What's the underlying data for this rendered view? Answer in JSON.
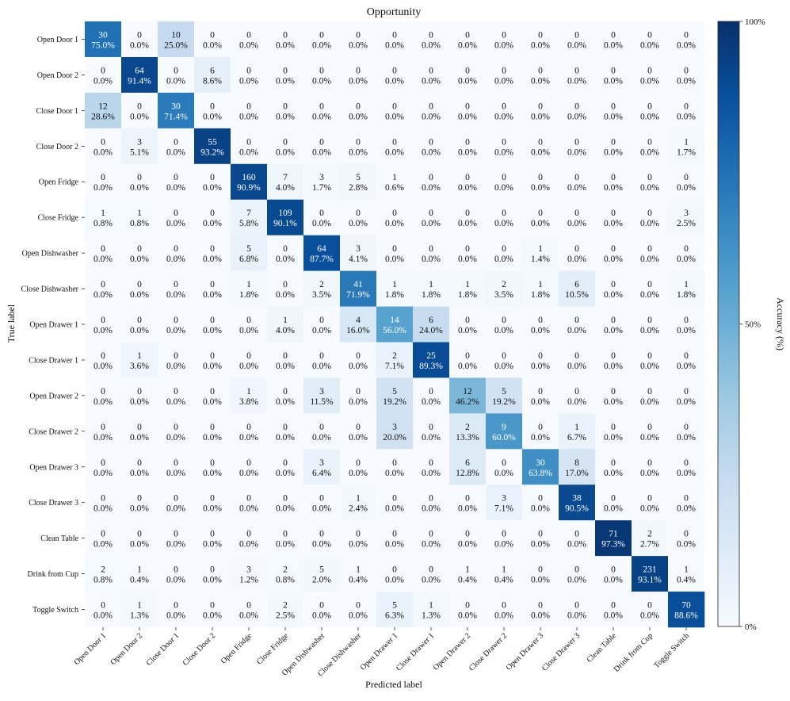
{
  "chart_data": {
    "type": "heatmap",
    "title": "Opportunity",
    "xlabel": "Predicted label",
    "ylabel": "True label",
    "colorbar": {
      "label": "Accuracy (%)",
      "ticks": [
        "0%",
        "50%",
        "100%"
      ],
      "range": [
        0,
        100
      ],
      "colormap": "Blues",
      "colors": [
        "#f7fbff",
        "#deebf7",
        "#c6dbef",
        "#9ecae1",
        "#6baed6",
        "#4292c6",
        "#2171b5",
        "#08519c",
        "#08306b"
      ]
    },
    "labels": [
      "Open Door 1",
      "Open Door 2",
      "Close Door 1",
      "Close Door 2",
      "Open Fridge",
      "Close Fridge",
      "Open Dishwasher",
      "Close Dishwasher",
      "Open Drawer 1",
      "Close Drawer 1",
      "Open Drawer 2",
      "Close Drawer 2",
      "Open Drawer 3",
      "Close Drawer 3",
      "Clean Table",
      "Drink from Cup",
      "Toggle Switch"
    ],
    "counts": [
      [
        30,
        0,
        10,
        0,
        0,
        0,
        0,
        0,
        0,
        0,
        0,
        0,
        0,
        0,
        0,
        0,
        0
      ],
      [
        0,
        64,
        0,
        6,
        0,
        0,
        0,
        0,
        0,
        0,
        0,
        0,
        0,
        0,
        0,
        0,
        0
      ],
      [
        12,
        0,
        30,
        0,
        0,
        0,
        0,
        0,
        0,
        0,
        0,
        0,
        0,
        0,
        0,
        0,
        0
      ],
      [
        0,
        3,
        0,
        55,
        0,
        0,
        0,
        0,
        0,
        0,
        0,
        0,
        0,
        0,
        0,
        0,
        1
      ],
      [
        0,
        0,
        0,
        0,
        160,
        7,
        3,
        5,
        1,
        0,
        0,
        0,
        0,
        0,
        0,
        0,
        0
      ],
      [
        1,
        1,
        0,
        0,
        7,
        109,
        0,
        0,
        0,
        0,
        0,
        0,
        0,
        0,
        0,
        0,
        3
      ],
      [
        0,
        0,
        0,
        0,
        5,
        0,
        64,
        3,
        0,
        0,
        0,
        0,
        1,
        0,
        0,
        0,
        0
      ],
      [
        0,
        0,
        0,
        0,
        1,
        0,
        2,
        41,
        1,
        1,
        1,
        2,
        1,
        6,
        0,
        0,
        1
      ],
      [
        0,
        0,
        0,
        0,
        0,
        1,
        0,
        4,
        14,
        6,
        0,
        0,
        0,
        0,
        0,
        0,
        0
      ],
      [
        0,
        1,
        0,
        0,
        0,
        0,
        0,
        0,
        2,
        25,
        0,
        0,
        0,
        0,
        0,
        0,
        0
      ],
      [
        0,
        0,
        0,
        0,
        1,
        0,
        3,
        0,
        5,
        0,
        12,
        5,
        0,
        0,
        0,
        0,
        0
      ],
      [
        0,
        0,
        0,
        0,
        0,
        0,
        0,
        0,
        3,
        0,
        2,
        9,
        0,
        1,
        0,
        0,
        0
      ],
      [
        0,
        0,
        0,
        0,
        0,
        0,
        3,
        0,
        0,
        0,
        6,
        0,
        30,
        8,
        0,
        0,
        0
      ],
      [
        0,
        0,
        0,
        0,
        0,
        0,
        0,
        1,
        0,
        0,
        0,
        3,
        0,
        38,
        0,
        0,
        0
      ],
      [
        0,
        0,
        0,
        0,
        0,
        0,
        0,
        0,
        0,
        0,
        0,
        0,
        0,
        0,
        71,
        2,
        0
      ],
      [
        2,
        1,
        0,
        0,
        3,
        2,
        5,
        1,
        0,
        0,
        1,
        1,
        0,
        0,
        0,
        231,
        1
      ],
      [
        0,
        1,
        0,
        0,
        0,
        2,
        0,
        0,
        5,
        1,
        0,
        0,
        0,
        0,
        0,
        0,
        70
      ]
    ],
    "percentages": [
      [
        75.0,
        0.0,
        25.0,
        0.0,
        0.0,
        0.0,
        0.0,
        0.0,
        0.0,
        0.0,
        0.0,
        0.0,
        0.0,
        0.0,
        0.0,
        0.0,
        0.0
      ],
      [
        0.0,
        91.4,
        0.0,
        8.6,
        0.0,
        0.0,
        0.0,
        0.0,
        0.0,
        0.0,
        0.0,
        0.0,
        0.0,
        0.0,
        0.0,
        0.0,
        0.0
      ],
      [
        28.6,
        0.0,
        71.4,
        0.0,
        0.0,
        0.0,
        0.0,
        0.0,
        0.0,
        0.0,
        0.0,
        0.0,
        0.0,
        0.0,
        0.0,
        0.0,
        0.0
      ],
      [
        0.0,
        5.1,
        0.0,
        93.2,
        0.0,
        0.0,
        0.0,
        0.0,
        0.0,
        0.0,
        0.0,
        0.0,
        0.0,
        0.0,
        0.0,
        0.0,
        1.7
      ],
      [
        0.0,
        0.0,
        0.0,
        0.0,
        90.9,
        4.0,
        1.7,
        2.8,
        0.6,
        0.0,
        0.0,
        0.0,
        0.0,
        0.0,
        0.0,
        0.0,
        0.0
      ],
      [
        0.8,
        0.8,
        0.0,
        0.0,
        5.8,
        90.1,
        0.0,
        0.0,
        0.0,
        0.0,
        0.0,
        0.0,
        0.0,
        0.0,
        0.0,
        0.0,
        2.5
      ],
      [
        0.0,
        0.0,
        0.0,
        0.0,
        6.8,
        0.0,
        87.7,
        4.1,
        0.0,
        0.0,
        0.0,
        0.0,
        1.4,
        0.0,
        0.0,
        0.0,
        0.0
      ],
      [
        0.0,
        0.0,
        0.0,
        0.0,
        1.8,
        0.0,
        3.5,
        71.9,
        1.8,
        1.8,
        1.8,
        3.5,
        1.8,
        10.5,
        0.0,
        0.0,
        1.8
      ],
      [
        0.0,
        0.0,
        0.0,
        0.0,
        0.0,
        4.0,
        0.0,
        16.0,
        56.0,
        24.0,
        0.0,
        0.0,
        0.0,
        0.0,
        0.0,
        0.0,
        0.0
      ],
      [
        0.0,
        3.6,
        0.0,
        0.0,
        0.0,
        0.0,
        0.0,
        0.0,
        7.1,
        89.3,
        0.0,
        0.0,
        0.0,
        0.0,
        0.0,
        0.0,
        0.0
      ],
      [
        0.0,
        0.0,
        0.0,
        0.0,
        3.8,
        0.0,
        11.5,
        0.0,
        19.2,
        0.0,
        46.2,
        19.2,
        0.0,
        0.0,
        0.0,
        0.0,
        0.0
      ],
      [
        0.0,
        0.0,
        0.0,
        0.0,
        0.0,
        0.0,
        0.0,
        0.0,
        20.0,
        0.0,
        13.3,
        60.0,
        0.0,
        6.7,
        0.0,
        0.0,
        0.0
      ],
      [
        0.0,
        0.0,
        0.0,
        0.0,
        0.0,
        0.0,
        6.4,
        0.0,
        0.0,
        0.0,
        12.8,
        0.0,
        63.8,
        17.0,
        0.0,
        0.0,
        0.0
      ],
      [
        0.0,
        0.0,
        0.0,
        0.0,
        0.0,
        0.0,
        0.0,
        2.4,
        0.0,
        0.0,
        0.0,
        7.1,
        0.0,
        90.5,
        0.0,
        0.0,
        0.0
      ],
      [
        0.0,
        0.0,
        0.0,
        0.0,
        0.0,
        0.0,
        0.0,
        0.0,
        0.0,
        0.0,
        0.0,
        0.0,
        0.0,
        0.0,
        97.3,
        2.7,
        0.0
      ],
      [
        0.8,
        0.4,
        0.0,
        0.0,
        1.2,
        0.8,
        2.0,
        0.4,
        0.0,
        0.0,
        0.4,
        0.4,
        0.0,
        0.0,
        0.0,
        93.1,
        0.4
      ],
      [
        0.0,
        1.3,
        0.0,
        0.0,
        0.0,
        2.5,
        0.0,
        0.0,
        6.3,
        1.3,
        0.0,
        0.0,
        0.0,
        0.0,
        0.0,
        0.0,
        88.6
      ]
    ]
  }
}
